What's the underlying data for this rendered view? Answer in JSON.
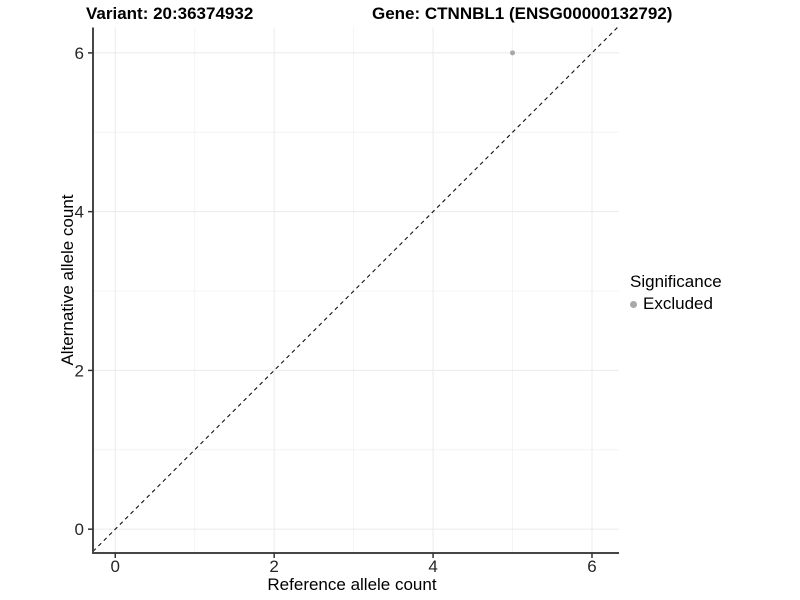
{
  "chart_data": {
    "type": "scatter",
    "title_left": "Variant: 20:36374932",
    "title_right": "Gene: CTNNBL1 (ENSG00000132792)",
    "xlabel": "Reference allele count",
    "ylabel": "Alternative allele count",
    "xlim": [
      -0.28,
      6.34
    ],
    "ylim": [
      -0.3,
      6.32
    ],
    "x_ticks": [
      0,
      2,
      4,
      6
    ],
    "y_ticks": [
      0,
      2,
      4,
      6
    ],
    "x_minor_ticks": [
      1,
      3,
      5
    ],
    "y_minor_ticks": [
      1,
      3,
      5
    ],
    "grid": true,
    "points": [
      {
        "x": 5,
        "y": 6,
        "series": "Excluded"
      }
    ],
    "reference_line": {
      "type": "identity",
      "style": "dashed",
      "color": "#111111"
    },
    "legend": {
      "title": "Significance",
      "position": "right",
      "items": [
        {
          "label": "Excluded",
          "color": "#a8a8a8"
        }
      ]
    },
    "colors": {
      "background": "#ffffff",
      "point": "#a8a8a8",
      "grid_major": "#ebebeb",
      "grid_minor": "#f4f4f4",
      "axis_line": "#464646",
      "tick_mark": "#333333",
      "tick_label": "#262626"
    }
  }
}
